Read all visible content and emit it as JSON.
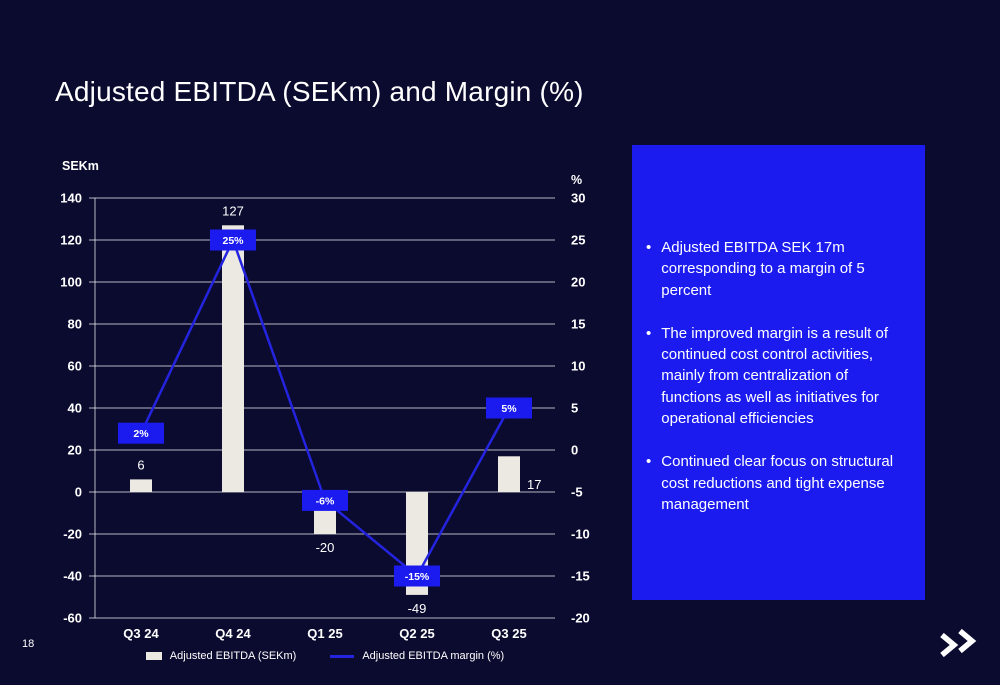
{
  "page": {
    "title": "Adjusted EBITDA (SEKm) and Margin (%)",
    "page_number": "18"
  },
  "chart_data": {
    "type": "combo",
    "categories": [
      "Q3 24",
      "Q4 24",
      "Q1 25",
      "Q2 25",
      "Q3 25"
    ],
    "series": [
      {
        "name": "Adjusted EBITDA (SEKm)",
        "type": "bar",
        "axis": "left",
        "values": [
          6,
          127,
          -20,
          -49,
          17
        ],
        "value_labels": [
          "6",
          "127",
          "-20",
          "-49",
          "17"
        ],
        "value_label_positions": [
          "above",
          "above",
          "below",
          "below",
          "right"
        ]
      },
      {
        "name": "Adjusted EBITDA margin (%)",
        "type": "line",
        "axis": "right",
        "values": [
          2,
          25,
          -6,
          -15,
          5
        ],
        "point_labels": [
          "2%",
          "25%",
          "-6%",
          "-15%",
          "5%"
        ]
      }
    ],
    "left_axis": {
      "label": "SEKm",
      "ticks": [
        140,
        120,
        100,
        80,
        60,
        40,
        20,
        0,
        -20,
        -40,
        -60
      ],
      "max": 140,
      "min": -60
    },
    "right_axis": {
      "label": "%",
      "ticks": [
        30,
        25,
        20,
        15,
        10,
        5,
        0,
        -5,
        -10,
        -15,
        -20
      ],
      "max": 30,
      "min": -20
    },
    "legend": [
      {
        "label": "Adjusted EBITDA (SEKm)",
        "swatch": "bar"
      },
      {
        "label": "Adjusted EBITDA margin (%)",
        "swatch": "line"
      }
    ],
    "colors": {
      "bar": "#ECE9E2",
      "line": "#2424E0",
      "label_box": "#1B1BF0",
      "grid": "rgba(255,255,255,0.7)",
      "text": "#FFFFFF"
    },
    "grid": true,
    "legend_position": "bottom"
  },
  "side_panel": {
    "background": "#1B1BF0",
    "bullets": [
      "Adjusted EBITDA SEK 17m corresponding to a margin of 5 percent",
      "The improved margin is a result of continued cost control activities, mainly from centralization of functions as well as initiatives for operational efficiencies",
      "Continued clear focus on structural cost reductions and tight expense management"
    ]
  },
  "logo": {
    "name": "double-chevron-logo"
  }
}
